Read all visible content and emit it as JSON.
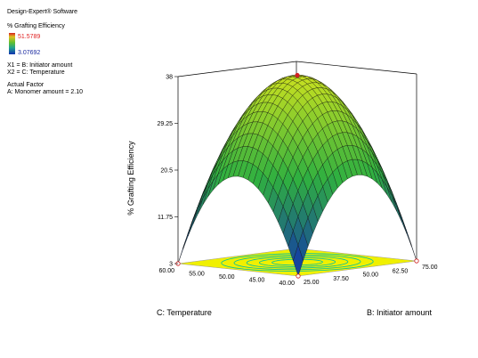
{
  "software": "Design-Expert® Software",
  "response_label": "% Grafting Efficiency",
  "legend_high": "51.5789",
  "legend_low": "3.07692",
  "factor_x1": "X1 = B: Initiator amount",
  "factor_x2": "X2 = C: Temperature",
  "actual_factor_title": "Actual Factor",
  "actual_factor_value": "A: Monomer amount = 2.10",
  "chart_data": {
    "type": "surface3d",
    "zlabel": "% Grafting Efficiency",
    "xlabel": "B: Initiator amount",
    "ylabel": "C: Temperature",
    "z_ticks": [
      "3",
      "11.75",
      "20.5",
      "29.25",
      "38"
    ],
    "x_ticks": [
      "25.00",
      "37.50",
      "50.00",
      "62.50",
      "75.00"
    ],
    "y_ticks": [
      "40.00",
      "45.00",
      "50.00",
      "55.00",
      "60.00"
    ],
    "zlim": [
      3,
      38
    ],
    "xlim": [
      25,
      75
    ],
    "ylim": [
      40,
      60
    ],
    "colors": {
      "surface_low": "#1030b0",
      "surface_mid": "#30c040",
      "surface_high": "#d8e020",
      "floor": "#f0f000",
      "contour": "#00c0a0",
      "design_point": "#d02020"
    },
    "design_points": [
      {
        "x": 50,
        "y": 50,
        "z": 38
      },
      {
        "x": 25,
        "y": 40,
        "z": 3
      },
      {
        "x": 75,
        "y": 40,
        "z": 3
      },
      {
        "x": 25,
        "y": 60,
        "z": 3
      }
    ]
  }
}
